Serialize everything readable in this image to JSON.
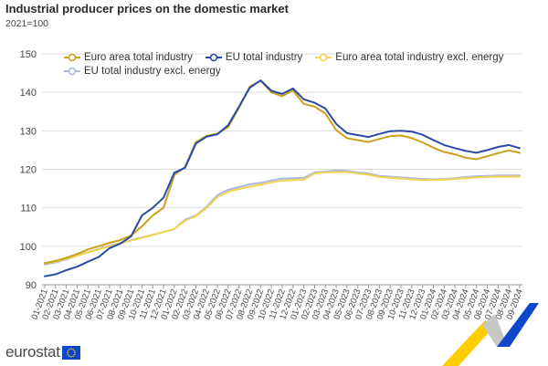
{
  "header": {
    "title": "Industrial producer prices on the domestic market",
    "subtitle": "2021=100"
  },
  "footer": {
    "logo_text": "eurostat"
  },
  "colors": {
    "euro_area_total": "#c9a21a",
    "eu_total": "#2a4aa8",
    "euro_area_excl_energy": "#f2d44e",
    "eu_excl_energy": "#a9b9e3",
    "grid": "#dddddd",
    "eurostat_blue": "#0e47cb",
    "eurostat_yellow": "#ffcc00"
  },
  "chart_data": {
    "type": "line",
    "title": "Industrial producer prices on the domestic market",
    "subtitle": "2021=100",
    "ylim": [
      90,
      150
    ],
    "yticks": [
      90,
      100,
      110,
      120,
      130,
      140,
      150
    ],
    "grid": true,
    "legend_position": "top",
    "x": [
      "01-2021",
      "02-2021",
      "03-2021",
      "04-2021",
      "05-2021",
      "06-2021",
      "07-2021",
      "08-2021",
      "09-2021",
      "10-2021",
      "11-2021",
      "12-2021",
      "01-2022",
      "02-2022",
      "03-2022",
      "04-2022",
      "05-2022",
      "06-2022",
      "07-2022",
      "08-2022",
      "09-2022",
      "10-2022",
      "11-2022",
      "12-2022",
      "01-2023",
      "02-2023",
      "03-2023",
      "04-2023",
      "05-2023",
      "06-2023",
      "07-2023",
      "08-2023",
      "09-2023",
      "10-2023",
      "11-2023",
      "12-2023",
      "01-2024",
      "02-2024",
      "03-2024",
      "04-2024",
      "05-2024",
      "06-2024",
      "07-2024",
      "08-2024",
      "09-2024"
    ],
    "series": [
      {
        "name": "Euro area total industry",
        "color_key": "euro_area_total",
        "values": [
          95.6,
          96.2,
          97.0,
          98.0,
          99.2,
          100.0,
          100.9,
          101.6,
          102.8,
          105.2,
          108.0,
          110.0,
          118.5,
          120.6,
          127.1,
          128.7,
          129.3,
          131.0,
          136.0,
          141.5,
          143.0,
          140.0,
          139.0,
          140.5,
          137.0,
          136.3,
          134.5,
          130.2,
          128.1,
          127.6,
          127.1,
          127.9,
          128.6,
          128.8,
          128.1,
          127.0,
          125.6,
          124.5,
          123.9,
          123.0,
          122.6,
          123.4,
          124.2,
          124.9,
          124.3
        ]
      },
      {
        "name": "EU total industry",
        "color_key": "eu_total",
        "values": [
          92.2,
          92.7,
          93.8,
          94.7,
          96.0,
          97.2,
          99.5,
          100.7,
          102.6,
          108.0,
          110.0,
          112.6,
          119.1,
          120.4,
          126.7,
          128.5,
          129.1,
          131.5,
          136.3,
          141.2,
          143.1,
          140.4,
          139.6,
          141.0,
          138.2,
          137.3,
          135.8,
          131.8,
          129.4,
          128.9,
          128.4,
          129.2,
          129.9,
          130.0,
          129.8,
          129.0,
          127.6,
          126.3,
          125.5,
          124.8,
          124.3,
          125.0,
          125.8,
          126.3,
          125.5
        ]
      },
      {
        "name": "Euro area total industry excl. energy",
        "color_key": "euro_area_excl_energy",
        "values": [
          95.6,
          96.0,
          96.8,
          97.6,
          98.4,
          99.2,
          100.0,
          100.8,
          101.5,
          102.2,
          102.9,
          103.7,
          104.5,
          106.6,
          107.8,
          110.0,
          112.8,
          114.2,
          114.9,
          115.5,
          116.0,
          116.6,
          117.1,
          117.2,
          117.3,
          118.9,
          119.2,
          119.3,
          119.3,
          118.9,
          118.6,
          118.0,
          117.8,
          117.6,
          117.4,
          117.2,
          117.2,
          117.3,
          117.5,
          117.7,
          117.9,
          118.0,
          118.1,
          118.1,
          118.1
        ]
      },
      {
        "name": "EU total industry excl. energy",
        "color_key": "eu_excl_energy",
        "values": [
          95.3,
          95.8,
          96.6,
          97.6,
          98.5,
          99.3,
          100.2,
          100.8,
          101.6,
          102.3,
          103.0,
          103.7,
          104.5,
          106.9,
          108.0,
          110.3,
          113.3,
          114.7,
          115.4,
          116.1,
          116.5,
          117.1,
          117.6,
          117.7,
          117.8,
          119.2,
          119.4,
          119.7,
          119.6,
          119.2,
          118.9,
          118.3,
          118.1,
          117.9,
          117.7,
          117.5,
          117.4,
          117.5,
          117.7,
          118.0,
          118.2,
          118.3,
          118.4,
          118.4,
          118.4
        ]
      }
    ]
  }
}
